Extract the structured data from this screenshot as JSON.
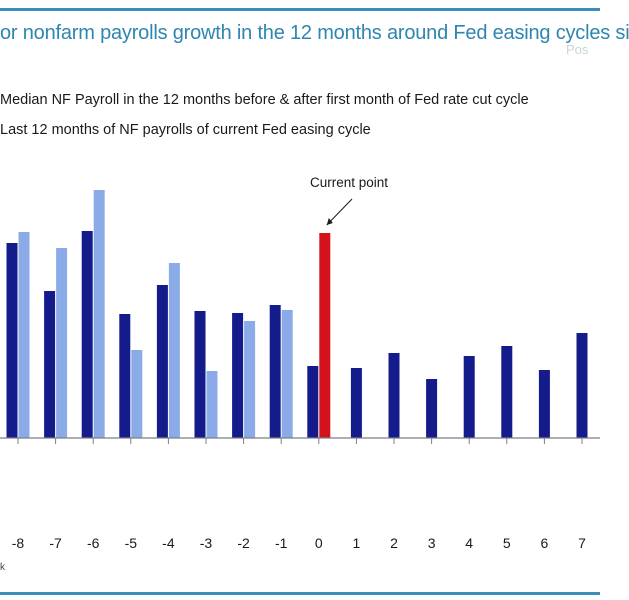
{
  "title": "or nonfarm payrolls growth in the 12 months around Fed easing cycles si",
  "watermark": "Pos",
  "legend": [
    "Median NF Payroll in the 12 months before & after first month of Fed rate cut cycle",
    "Last 12 months of NF payrolls of current Fed easing cycle"
  ],
  "footnote": "k",
  "annotation": "Current point",
  "colors": {
    "frame": "#3a8fb7",
    "title": "#2e86b0",
    "median": "#141b8a",
    "current": "#8aaae8",
    "current_point": "#d3121b",
    "axis": "#7a8088"
  },
  "chart_data": {
    "type": "bar",
    "categories": [
      "-8",
      "-7",
      "-6",
      "-5",
      "-4",
      "-3",
      "-2",
      "-1",
      "0",
      "1",
      "2",
      "3",
      "4",
      "5",
      "6",
      "7"
    ],
    "series": [
      {
        "name": "Median NF Payroll in the 12 months before & after first month of Fed rate cut cycle",
        "values": [
          195,
          147,
          207,
          124,
          153,
          127,
          125,
          133,
          72,
          70,
          85,
          59,
          82,
          92,
          68,
          105
        ]
      },
      {
        "name": "Last 12 months of NF payrolls of current Fed easing cycle",
        "values": [
          206,
          190,
          248,
          88,
          175,
          67,
          117,
          128,
          null,
          null,
          null,
          null,
          null,
          null,
          null,
          null
        ]
      }
    ],
    "highlight": {
      "category": "0",
      "value": 205,
      "label": "Current point"
    },
    "ylim": [
      -140,
      300
    ],
    "xlabel": "",
    "ylabel": ""
  }
}
